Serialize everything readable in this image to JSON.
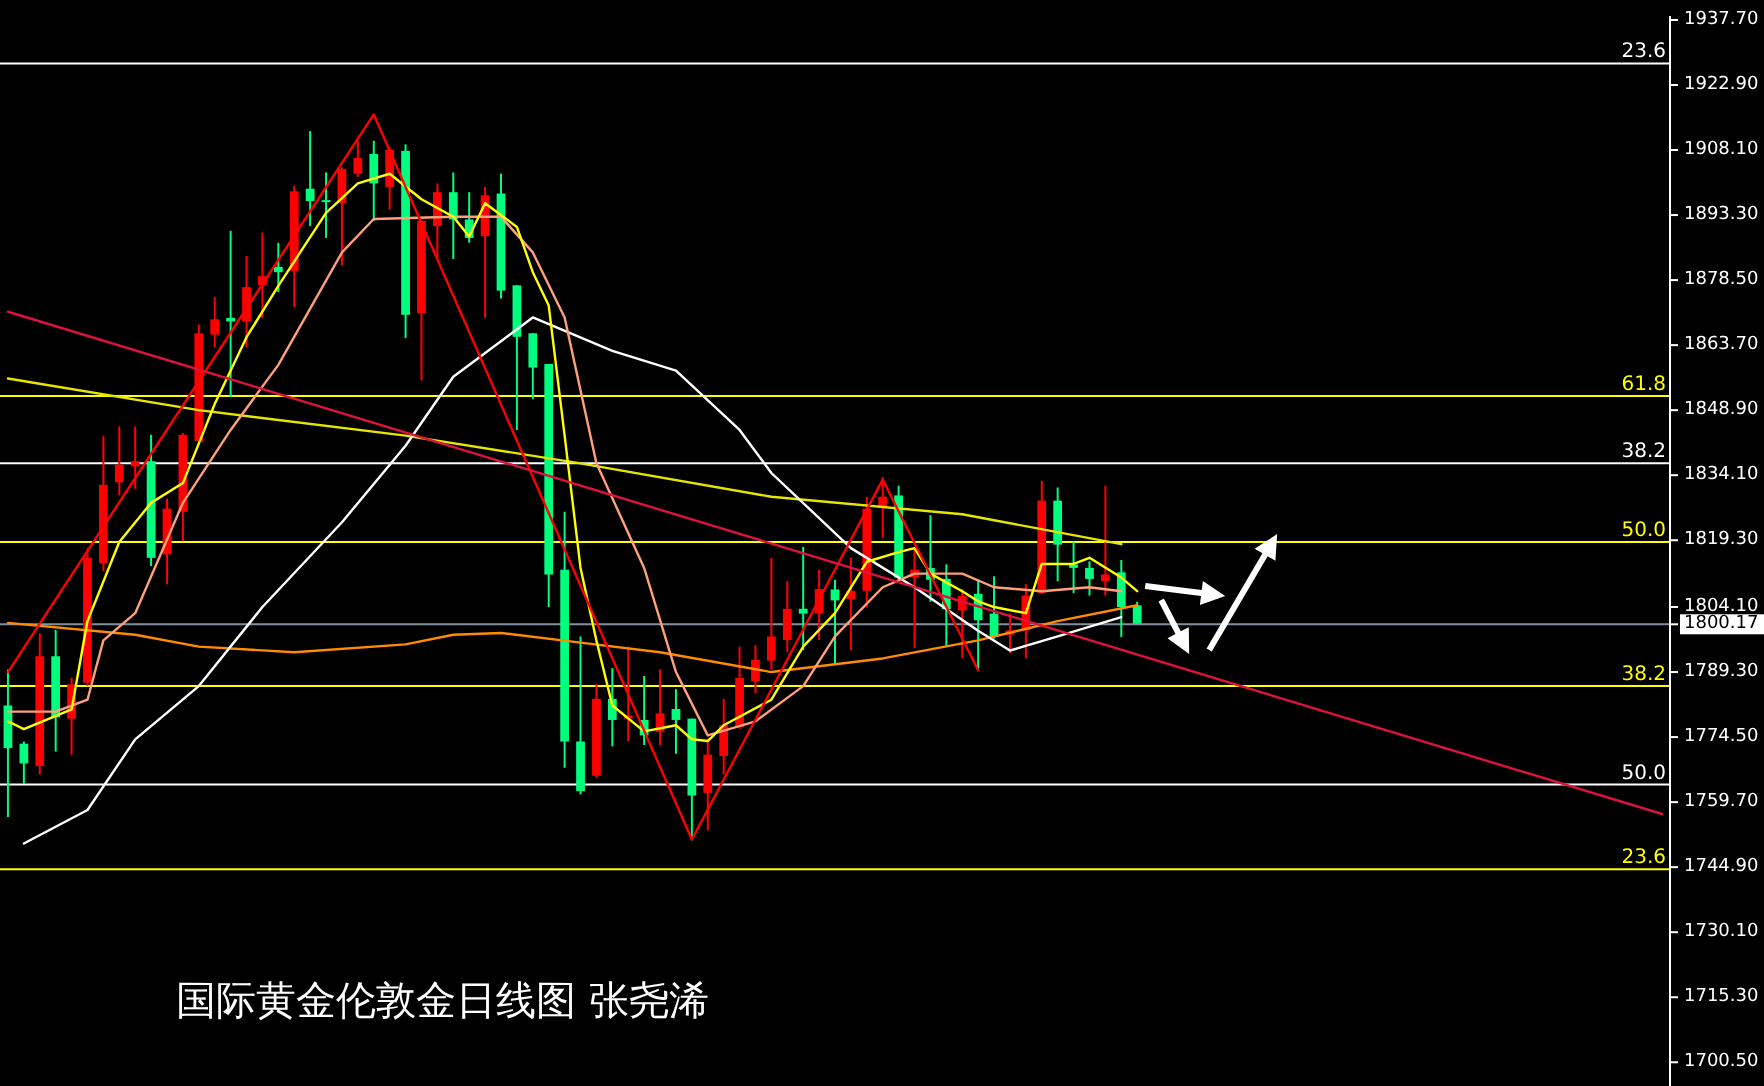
{
  "chart_data": {
    "type": "candlestick",
    "categories": [
      null,
      null,
      null,
      null,
      null,
      null,
      null,
      null,
      null,
      null,
      null,
      null,
      null,
      null,
      null,
      null,
      null,
      null,
      null,
      null,
      null,
      null,
      null,
      null,
      null,
      null,
      null,
      null,
      null,
      null,
      null,
      null,
      null,
      null,
      null,
      null,
      null,
      null,
      null,
      null,
      null,
      null,
      null,
      null,
      null,
      null,
      null,
      null,
      null,
      null,
      null,
      null,
      null,
      null,
      null,
      null,
      null,
      null,
      null,
      null,
      null,
      null,
      null,
      null,
      null,
      null,
      null,
      null,
      null,
      null,
      null,
      null,
      null,
      null,
      null,
      null,
      null,
      null,
      null,
      null,
      null,
      null,
      null,
      null,
      null,
      null,
      null,
      null,
      null,
      null,
      null,
      null,
      null,
      null,
      null,
      null,
      null,
      null,
      null,
      null,
      null,
      null,
      null,
      null,
      null
    ],
    "ohlc": [
      [
        1781.7,
        1789.9,
        1756.3,
        1772.0
      ],
      [
        1773.0,
        1773.5,
        1763.8,
        1768.5
      ],
      [
        1767.9,
        1798.1,
        1766.0,
        1792.9
      ],
      [
        1792.9,
        1798.9,
        1771.2,
        1779.0
      ],
      [
        1778.7,
        1788.0,
        1770.5,
        1786.5
      ],
      [
        1786.9,
        1817.5,
        1786.2,
        1815.3
      ],
      [
        1814.1,
        1843.0,
        1812.3,
        1831.9
      ],
      [
        1832.5,
        1845.2,
        1829.5,
        1836.5
      ],
      [
        1836.1,
        1845.2,
        1831.0,
        1837.3
      ],
      [
        1837.3,
        1843.3,
        1813.4,
        1815.3
      ],
      [
        1816.1,
        1828.8,
        1809.3,
        1826.5
      ],
      [
        1825.8,
        1843.7,
        1819.1,
        1843.3
      ],
      [
        1841.9,
        1868.4,
        1841.9,
        1866.4
      ],
      [
        1866.1,
        1874.6,
        1863.2,
        1869.6
      ],
      [
        1869.9,
        1889.7,
        1851.9,
        1869.1
      ],
      [
        1869.1,
        1884.0,
        1863.2,
        1876.9
      ],
      [
        1877.3,
        1889.3,
        1869.9,
        1879.4
      ],
      [
        1881.5,
        1887.0,
        1875.8,
        1880.3
      ],
      [
        1880.6,
        1900.0,
        1872.4,
        1898.7
      ],
      [
        1899.3,
        1912.4,
        1890.8,
        1896.5
      ],
      [
        1896.7,
        1903.0,
        1888.1,
        1896.3
      ],
      [
        1896.0,
        1904.2,
        1881.8,
        1903.8
      ],
      [
        1902.7,
        1910.2,
        1902.0,
        1906.3
      ],
      [
        1907.2,
        1910.2,
        1892.0,
        1900.5
      ],
      [
        1899.7,
        1908.7,
        1894.5,
        1908.2
      ],
      [
        1907.9,
        1909.4,
        1865.3,
        1870.6
      ],
      [
        1871.0,
        1892.0,
        1855.6,
        1892.0
      ],
      [
        1890.8,
        1900.5,
        1883.3,
        1898.5
      ],
      [
        1898.5,
        1903.0,
        1883.3,
        1892.3
      ],
      [
        1892.3,
        1898.5,
        1887.0,
        1888.1
      ],
      [
        1888.5,
        1899.7,
        1869.9,
        1897.8
      ],
      [
        1898.2,
        1902.7,
        1874.3,
        1876.1
      ],
      [
        1877.3,
        1877.3,
        1844.4,
        1865.6
      ],
      [
        1866.4,
        1866.4,
        1851.4,
        1858.6
      ],
      [
        1859.4,
        1859.4,
        1804.1,
        1811.5
      ],
      [
        1812.6,
        1825.8,
        1767.5,
        1773.5
      ],
      [
        1773.5,
        1797.4,
        1761.5,
        1762.2
      ],
      [
        1765.7,
        1786.6,
        1765.2,
        1783.2
      ],
      [
        1783.2,
        1790.2,
        1772.4,
        1778.4
      ],
      [
        1778.7,
        1795.1,
        1773.5,
        1779.4
      ],
      [
        1778.4,
        1788.4,
        1772.7,
        1774.9
      ],
      [
        1775.7,
        1789.9,
        1772.7,
        1779.9
      ],
      [
        1780.9,
        1785.4,
        1770.7,
        1778.4
      ],
      [
        1778.7,
        1778.7,
        1751.0,
        1761.2
      ],
      [
        1761.8,
        1774.2,
        1753.3,
        1770.5
      ],
      [
        1770.2,
        1783.2,
        1766.0,
        1777.2
      ],
      [
        1776.8,
        1795.1,
        1776.4,
        1788.0
      ],
      [
        1787.2,
        1795.4,
        1784.4,
        1792.1
      ],
      [
        1791.9,
        1815.3,
        1789.9,
        1797.4
      ],
      [
        1796.6,
        1810.0,
        1793.9,
        1803.7
      ],
      [
        1803.7,
        1817.8,
        1794.3,
        1802.6
      ],
      [
        1802.6,
        1812.6,
        1796.6,
        1808.2
      ],
      [
        1808.1,
        1810.3,
        1791.3,
        1805.6
      ],
      [
        1805.9,
        1815.3,
        1794.3,
        1807.8
      ],
      [
        1807.8,
        1829.2,
        1804.1,
        1826.5
      ],
      [
        1826.9,
        1833.7,
        1819.8,
        1829.2
      ],
      [
        1829.5,
        1831.7,
        1810.3,
        1810.8
      ],
      [
        1810.8,
        1817.5,
        1794.8,
        1812.6
      ],
      [
        1813.0,
        1825.0,
        1805.3,
        1810.3
      ],
      [
        1810.5,
        1813.8,
        1795.1,
        1803.6
      ],
      [
        1803.3,
        1808.2,
        1792.4,
        1806.6
      ],
      [
        1807.1,
        1810.3,
        1789.9,
        1801.1
      ],
      [
        1802.6,
        1811.1,
        1796.9,
        1797.3
      ],
      [
        1797.8,
        1802.6,
        1793.6,
        1798.8
      ],
      [
        1798.8,
        1809.3,
        1792.4,
        1806.7
      ],
      [
        1807.3,
        1832.8,
        1807.1,
        1828.3
      ],
      [
        1828.3,
        1831.3,
        1810.0,
        1818.3
      ],
      [
        1813.8,
        1819.0,
        1807.3,
        1813.0
      ],
      [
        1813.0,
        1814.5,
        1806.7,
        1810.5
      ],
      [
        1810.0,
        1831.7,
        1806.7,
        1811.5
      ],
      [
        1812.0,
        1814.8,
        1797.3,
        1804.1
      ],
      [
        1804.5,
        1805.3,
        1800.3,
        1800.3
      ],
      null,
      null,
      null,
      null,
      null,
      null,
      null,
      null,
      null,
      null,
      null,
      null,
      null,
      null,
      null,
      null,
      null,
      null,
      null,
      null,
      null,
      null,
      null,
      null,
      null,
      null,
      null,
      null,
      null,
      null,
      null,
      null,
      null
    ],
    "colors": [
      "#00ff7f",
      "#00ff7f",
      "#ff0000",
      "#00ff7f",
      "#ff0000",
      "#ff0000",
      "#ff0000",
      "#ff0000",
      "#ff0000",
      "#00ff7f",
      "#ff0000",
      "#ff0000",
      "#ff0000",
      "#ff0000",
      "#00ff7f",
      "#ff0000",
      "#ff0000",
      "#00ff7f",
      "#ff0000",
      "#00ff7f",
      "#00ff7f",
      "#ff0000",
      "#ff0000",
      "#00ff7f",
      "#ff0000",
      "#00ff7f",
      "#ff0000",
      "#ff0000",
      "#00ff7f",
      "#00ff7f",
      "#ff0000",
      "#00ff7f",
      "#00ff7f",
      "#00ff7f",
      "#00ff7f",
      "#00ff7f",
      "#00ff7f",
      "#ff0000",
      "#00ff7f",
      "#ff0000",
      "#00ff7f",
      "#ff0000",
      "#00ff7f",
      "#00ff7f",
      "#ff0000",
      "#ff0000",
      "#ff0000",
      "#ff0000",
      "#ff0000",
      "#ff0000",
      "#00ff7f",
      "#ff0000",
      "#00ff7f",
      "#ff0000",
      "#ff0000",
      "#ff0000",
      "#00ff7f",
      "#ff0000",
      "#00ff7f",
      "#00ff7f",
      "#ff0000",
      "#00ff7f",
      "#00ff7f",
      "#ff0000",
      "#ff0000",
      "#ff0000",
      "#00ff7f",
      "#00ff7f",
      "#00ff7f",
      "#ff0000",
      "#00ff7f",
      "#00ff7f",
      null,
      null,
      null,
      null,
      null,
      null,
      null,
      null,
      null,
      null,
      null,
      null,
      null,
      null,
      null,
      null,
      null,
      null,
      null,
      null,
      null,
      null,
      null,
      null,
      null,
      null,
      null,
      null,
      null,
      null,
      null,
      null,
      null
    ],
    "series": [
      {
        "type": "line",
        "color": "#e6e600",
        "values": [
          1856.1,
          null,
          null,
          null,
          null,
          null,
          null,
          null,
          null,
          null,
          null,
          null,
          1848.9,
          null,
          null,
          null,
          null,
          null,
          null,
          null,
          null,
          null,
          null,
          null,
          null,
          1843.1,
          null,
          null,
          null,
          null,
          null,
          null,
          null,
          null,
          null,
          null,
          1836.8,
          null,
          null,
          null,
          null,
          null,
          null,
          null,
          null,
          null,
          null,
          null,
          1829.2,
          null,
          null,
          null,
          null,
          null,
          null,
          null,
          null,
          null,
          null,
          null,
          1825.2,
          null,
          null,
          null,
          null,
          null,
          null,
          null,
          null,
          null,
          1818.4,
          null,
          null,
          null,
          null,
          null,
          null,
          null,
          null,
          null,
          null,
          null,
          null,
          null,
          null,
          null,
          null,
          null,
          null,
          null,
          null,
          null,
          null,
          null,
          null,
          null,
          null,
          null,
          null,
          null,
          null,
          null,
          null,
          null,
          null
        ]
      },
      {
        "type": "line",
        "color": "#ff8c00",
        "values": [
          1800.5,
          null,
          null,
          null,
          null,
          null,
          null,
          null,
          1797.8,
          null,
          null,
          null,
          1795.1,
          null,
          null,
          null,
          null,
          null,
          1793.8,
          null,
          null,
          null,
          null,
          null,
          null,
          1795.6,
          null,
          null,
          1797.8,
          null,
          null,
          1798.2,
          null,
          null,
          null,
          null,
          1796.0,
          null,
          null,
          null,
          null,
          1793.8,
          null,
          null,
          null,
          null,
          null,
          null,
          1789.3,
          null,
          null,
          null,
          null,
          null,
          null,
          1792.4,
          null,
          null,
          null,
          null,
          null,
          1796.5,
          null,
          null,
          null,
          null,
          1800.9,
          null,
          null,
          null,
          null,
          1804.5,
          null,
          null,
          null,
          null,
          null,
          null,
          null,
          null,
          null,
          null,
          null,
          null,
          null,
          null,
          null,
          null,
          null,
          null,
          null,
          null,
          null,
          null,
          null,
          null,
          null,
          null,
          null,
          null,
          null,
          null,
          null,
          null,
          null
        ]
      },
      {
        "type": "line",
        "color": "#ffffff",
        "values": [
          null,
          1750.3,
          null,
          null,
          null,
          1757.9,
          null,
          null,
          1774.0,
          null,
          null,
          null,
          1786.1,
          null,
          null,
          null,
          1804.1,
          null,
          null,
          null,
          null,
          1823.4,
          null,
          null,
          null,
          1840.8,
          null,
          null,
          1856.5,
          null,
          null,
          null,
          null,
          1870.0,
          null,
          null,
          null,
          null,
          1862.4,
          null,
          null,
          null,
          1857.9,
          null,
          null,
          null,
          1844.4,
          null,
          1834.6,
          null,
          null,
          null,
          null,
          1817.5,
          null,
          null,
          null,
          1808.6,
          null,
          null,
          null,
          1798.7,
          null,
          1794.2,
          null,
          null,
          1797.4,
          null,
          null,
          null,
          1801.8,
          null,
          null,
          null,
          null,
          null,
          null,
          null,
          null,
          null,
          null,
          null,
          null,
          null,
          null,
          null,
          null,
          null,
          null,
          null,
          null,
          null,
          null,
          null,
          null,
          null,
          null,
          null,
          null,
          null,
          null,
          null,
          null,
          null,
          null
        ]
      },
      {
        "type": "line",
        "color": "#ffa07a",
        "values": [
          1780.3,
          null,
          null,
          1780.3,
          null,
          1783.0,
          1796.5,
          null,
          1802.7,
          null,
          null,
          1827.8,
          null,
          null,
          1844.4,
          null,
          null,
          1859.2,
          null,
          null,
          null,
          1884.8,
          null,
          1892.4,
          null,
          null,
          null,
          null,
          1892.9,
          null,
          null,
          1892.9,
          null,
          1884.8,
          null,
          1870.0,
          null,
          1836.8,
          null,
          null,
          1813.0,
          null,
          1789.3,
          null,
          1774.9,
          null,
          null,
          1778.1,
          null,
          null,
          1786.1,
          null,
          1797.4,
          null,
          null,
          1808.6,
          null,
          1811.7,
          null,
          null,
          1811.7,
          null,
          1808.6,
          null,
          null,
          1807.7,
          null,
          null,
          1808.6,
          null,
          1807.7,
          null,
          null,
          null,
          null,
          null,
          null,
          null,
          null,
          null,
          null,
          null,
          null,
          null,
          null,
          null,
          null,
          null,
          null,
          null,
          null,
          null,
          null,
          null,
          null,
          null,
          null,
          null,
          null,
          null,
          null,
          null,
          null,
          null,
          null
        ]
      },
      {
        "type": "line",
        "color": "#ffff00",
        "values": [
          1778.1,
          1776.3,
          null,
          null,
          1780.8,
          1800.9,
          null,
          1818.9,
          null,
          1827.8,
          null,
          1832.3,
          null,
          1850.3,
          null,
          1865.5,
          null,
          1877.2,
          null,
          null,
          1893.8,
          null,
          1900.5,
          null,
          1902.7,
          null,
          1896.9,
          null,
          1892.9,
          1888.4,
          1896.0,
          null,
          1890.6,
          1880.3,
          1872.7,
          1843.1,
          1813.0,
          1796.5,
          1781.7,
          null,
          1775.8,
          null,
          1777.2,
          1774.0,
          1773.6,
          1777.2,
          null,
          null,
          1783.0,
          null,
          1795.1,
          null,
          1802.7,
          null,
          1814.4,
          null,
          1816.6,
          1817.5,
          1811.7,
          null,
          1807.7,
          1805.4,
          1804.1,
          null,
          1802.7,
          1813.9,
          null,
          1813.9,
          1815.3,
          null,
          1810.8,
          1807.7,
          null,
          null,
          null,
          null,
          null,
          null,
          null,
          null,
          null,
          null,
          null,
          null,
          null,
          null,
          null,
          null,
          null,
          null,
          null,
          null,
          null,
          null,
          null,
          null,
          null,
          null,
          null,
          null,
          null,
          null,
          null,
          null,
          null
        ]
      },
      {
        "type": "line",
        "color": "#ff0000",
        "values": [
          1789.3,
          null,
          null,
          null,
          null,
          null,
          null,
          null,
          null,
          null,
          null,
          null,
          null,
          null,
          null,
          null,
          null,
          null,
          null,
          null,
          null,
          null,
          null,
          1916.2,
          null,
          null,
          null,
          null,
          null,
          null,
          null,
          null,
          null,
          null,
          null,
          null,
          null,
          null,
          null,
          null,
          null,
          null,
          null,
          1751.2,
          null,
          null,
          null,
          null,
          null,
          null,
          null,
          null,
          null,
          null,
          null,
          1833.1,
          null,
          null,
          null,
          null,
          null,
          1789.7,
          null,
          null,
          null,
          null,
          null,
          null,
          null,
          null,
          null,
          null,
          null,
          null,
          null,
          null,
          null,
          null,
          null,
          null,
          null,
          null,
          null,
          null,
          null,
          null,
          null,
          null,
          null,
          null,
          null,
          null,
          null,
          null,
          null,
          null,
          null,
          null,
          null,
          null,
          null,
          null,
          null,
          null,
          null
        ]
      },
      {
        "type": "line",
        "color": "#dc143c",
        "values": [
          1871.3,
          null,
          null,
          null,
          null,
          null,
          null,
          null,
          null,
          null,
          null,
          null,
          null,
          null,
          null,
          null,
          null,
          null,
          null,
          null,
          null,
          null,
          null,
          null,
          null,
          null,
          null,
          null,
          null,
          null,
          null,
          null,
          null,
          null,
          null,
          null,
          null,
          null,
          null,
          null,
          null,
          null,
          null,
          null,
          null,
          null,
          null,
          null,
          null,
          null,
          null,
          null,
          null,
          null,
          null,
          null,
          null,
          null,
          null,
          null,
          null,
          null,
          null,
          null,
          null,
          null,
          null,
          null,
          null,
          null,
          null,
          null,
          null,
          null,
          null,
          null,
          null,
          null,
          null,
          null,
          null,
          null,
          null,
          null,
          null,
          null,
          null,
          null,
          null,
          null,
          null,
          null,
          null,
          null,
          null,
          null,
          null,
          null,
          null,
          null,
          null,
          null,
          null,
          null,
          1757.0
        ]
      }
    ],
    "ylim": [
      1695.1,
      1938.6
    ],
    "yticks": [
      {
        "value": 1937.7,
        "label": "1937.70"
      },
      {
        "value": 1922.9,
        "label": "1922.90"
      },
      {
        "value": 1908.1,
        "label": "1908.10"
      },
      {
        "value": 1893.3,
        "label": "1893.30"
      },
      {
        "value": 1878.5,
        "label": "1878.50"
      },
      {
        "value": 1863.7,
        "label": "1863.70"
      },
      {
        "value": 1848.9,
        "label": "1848.90"
      },
      {
        "value": 1834.1,
        "label": "1834.10"
      },
      {
        "value": 1819.3,
        "label": "1819.30"
      },
      {
        "value": 1804.1,
        "label": "1804.10"
      },
      {
        "value": 1800.17,
        "label": "1800.17"
      },
      {
        "value": 1789.3,
        "label": "1789.30"
      },
      {
        "value": 1774.5,
        "label": "1774.50"
      },
      {
        "value": 1759.7,
        "label": "1759.70"
      },
      {
        "value": 1744.9,
        "label": "1744.90"
      },
      {
        "value": 1730.1,
        "label": "1730.10"
      },
      {
        "value": 1715.3,
        "label": "1715.30"
      },
      {
        "value": 1700.5,
        "label": "1700.50"
      }
    ],
    "ref_lines": [
      {
        "axis": "y",
        "value": 1927.8,
        "color": "#ffffff"
      },
      {
        "axis": "y",
        "value": 1852.1,
        "color": "#ffff00"
      },
      {
        "axis": "y",
        "value": 1836.8,
        "color": "#ffffff"
      },
      {
        "axis": "y",
        "value": 1818.9,
        "color": "#ffff00"
      },
      {
        "axis": "y",
        "value": 1800.17,
        "color": "#8090a0"
      },
      {
        "axis": "y",
        "value": 1786.1,
        "color": "#ffff00"
      },
      {
        "axis": "y",
        "value": 1763.7,
        "color": "#ffffff"
      },
      {
        "axis": "y",
        "value": 1744.4,
        "color": "#ffff00"
      }
    ],
    "annotations": [
      "国际黄金伦敦金日线图 张尧浠",
      {
        "text": "23.6",
        "y": 1927.8
      },
      {
        "text": "61.8",
        "y": 1852.1
      },
      {
        "text": "38.2",
        "y": 1836.8
      },
      {
        "text": "50.0",
        "y": 1818.9
      },
      {
        "text": "38.2",
        "y": 1786.1
      },
      {
        "text": "50.0",
        "y": 1763.7
      },
      {
        "text": "23.6",
        "y": 1744.4
      }
    ],
    "tick_labels": "y",
    "grid": false
  }
}
